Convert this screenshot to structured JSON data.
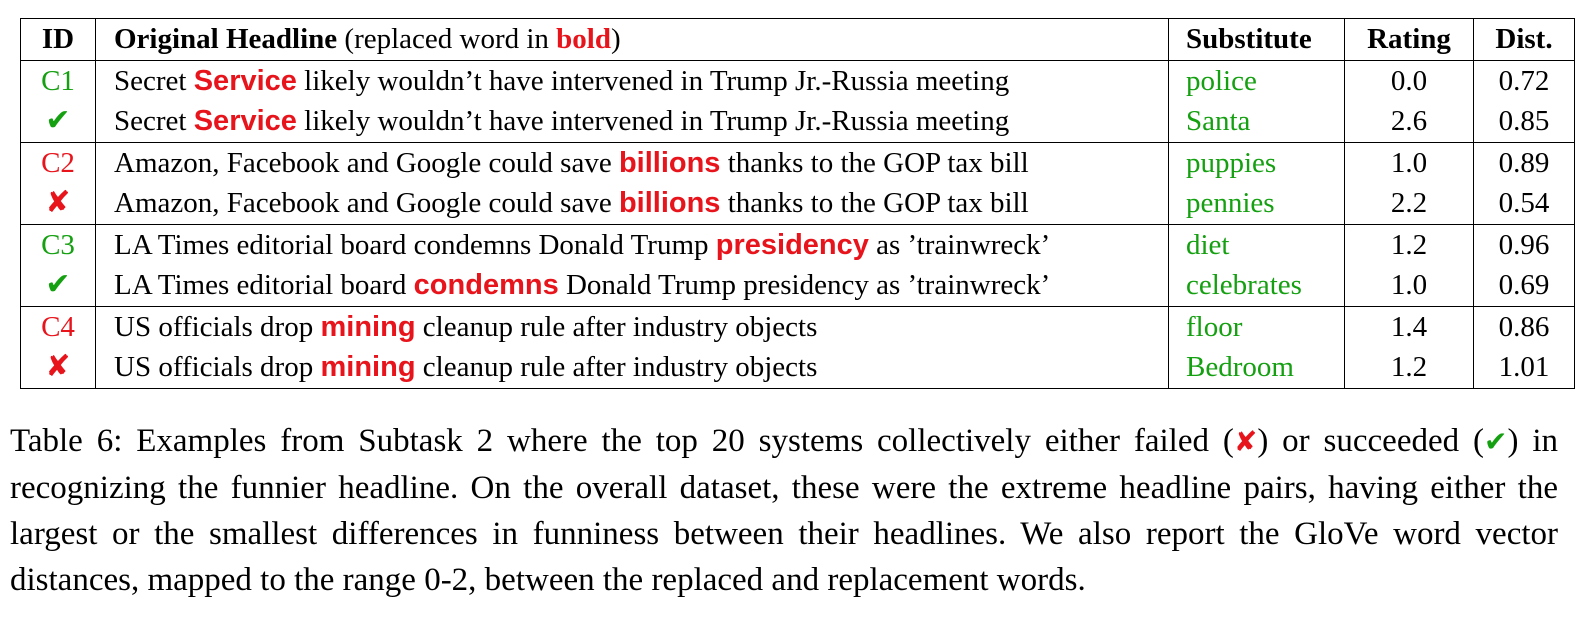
{
  "table": {
    "headers": {
      "id": "ID",
      "headline_bold": "Original Headline",
      "headline_paren_open": " (replaced word in ",
      "headline_bold_word": "bold",
      "headline_paren_close": ")",
      "substitute": "Substitute",
      "rating": "Rating",
      "dist": "Dist."
    },
    "groups": [
      {
        "id": "C1",
        "mark": "✔",
        "rows": [
          {
            "pre": "Secret ",
            "word": "Service",
            "post": " likely wouldn’t have intervened in Trump Jr.-Russia meeting",
            "substitute": "police",
            "rating": "0.0",
            "dist": "0.72"
          },
          {
            "pre": "Secret ",
            "word": "Service",
            "post": " likely wouldn’t have intervened in Trump Jr.-Russia meeting",
            "substitute": "Santa",
            "rating": "2.6",
            "dist": "0.85"
          }
        ]
      },
      {
        "id": "C2",
        "mark": "✘",
        "rows": [
          {
            "pre": "Amazon, Facebook and Google could save ",
            "word": "billions",
            "post": " thanks to the GOP tax bill",
            "substitute": "puppies",
            "rating": "1.0",
            "dist": "0.89"
          },
          {
            "pre": "Amazon, Facebook and Google could save ",
            "word": "billions",
            "post": " thanks to the GOP tax bill",
            "substitute": "pennies",
            "rating": "2.2",
            "dist": "0.54"
          }
        ]
      },
      {
        "id": "C3",
        "mark": "✔",
        "rows": [
          {
            "pre": "LA Times editorial board condemns Donald Trump ",
            "word": "presidency",
            "post": " as ’trainwreck’",
            "substitute": "diet",
            "rating": "1.2",
            "dist": "0.96"
          },
          {
            "pre": "LA Times editorial board ",
            "word": "condemns",
            "post": " Donald Trump presidency as ’trainwreck’",
            "substitute": "celebrates",
            "rating": "1.0",
            "dist": "0.69"
          }
        ]
      },
      {
        "id": "C4",
        "mark": "✘",
        "rows": [
          {
            "pre": "US officials drop ",
            "word": "mining",
            "post": " cleanup rule after industry objects",
            "substitute": "floor",
            "rating": "1.4",
            "dist": "0.86"
          },
          {
            "pre": "US officials drop ",
            "word": "mining",
            "post": " cleanup rule after industry objects",
            "substitute": "Bedroom",
            "rating": "1.2",
            "dist": "1.01"
          }
        ]
      }
    ]
  },
  "caption": {
    "p1": "Table 6: Examples from Subtask 2 where the top 20 systems collectively either failed (",
    "fail_mark": "✘",
    "p2": ") or succeeded (",
    "ok_mark": "✔",
    "p3": ") in recognizing the funnier headline. On the overall dataset, these were the extreme headline pairs, having either the largest or the smallest differences in funniness between their headlines. We also report the GloVe word vector distances, mapped to the range 0-2, between the replaced and replacement words."
  },
  "colors": {
    "red": "#e8141c",
    "green": "#15a011"
  }
}
